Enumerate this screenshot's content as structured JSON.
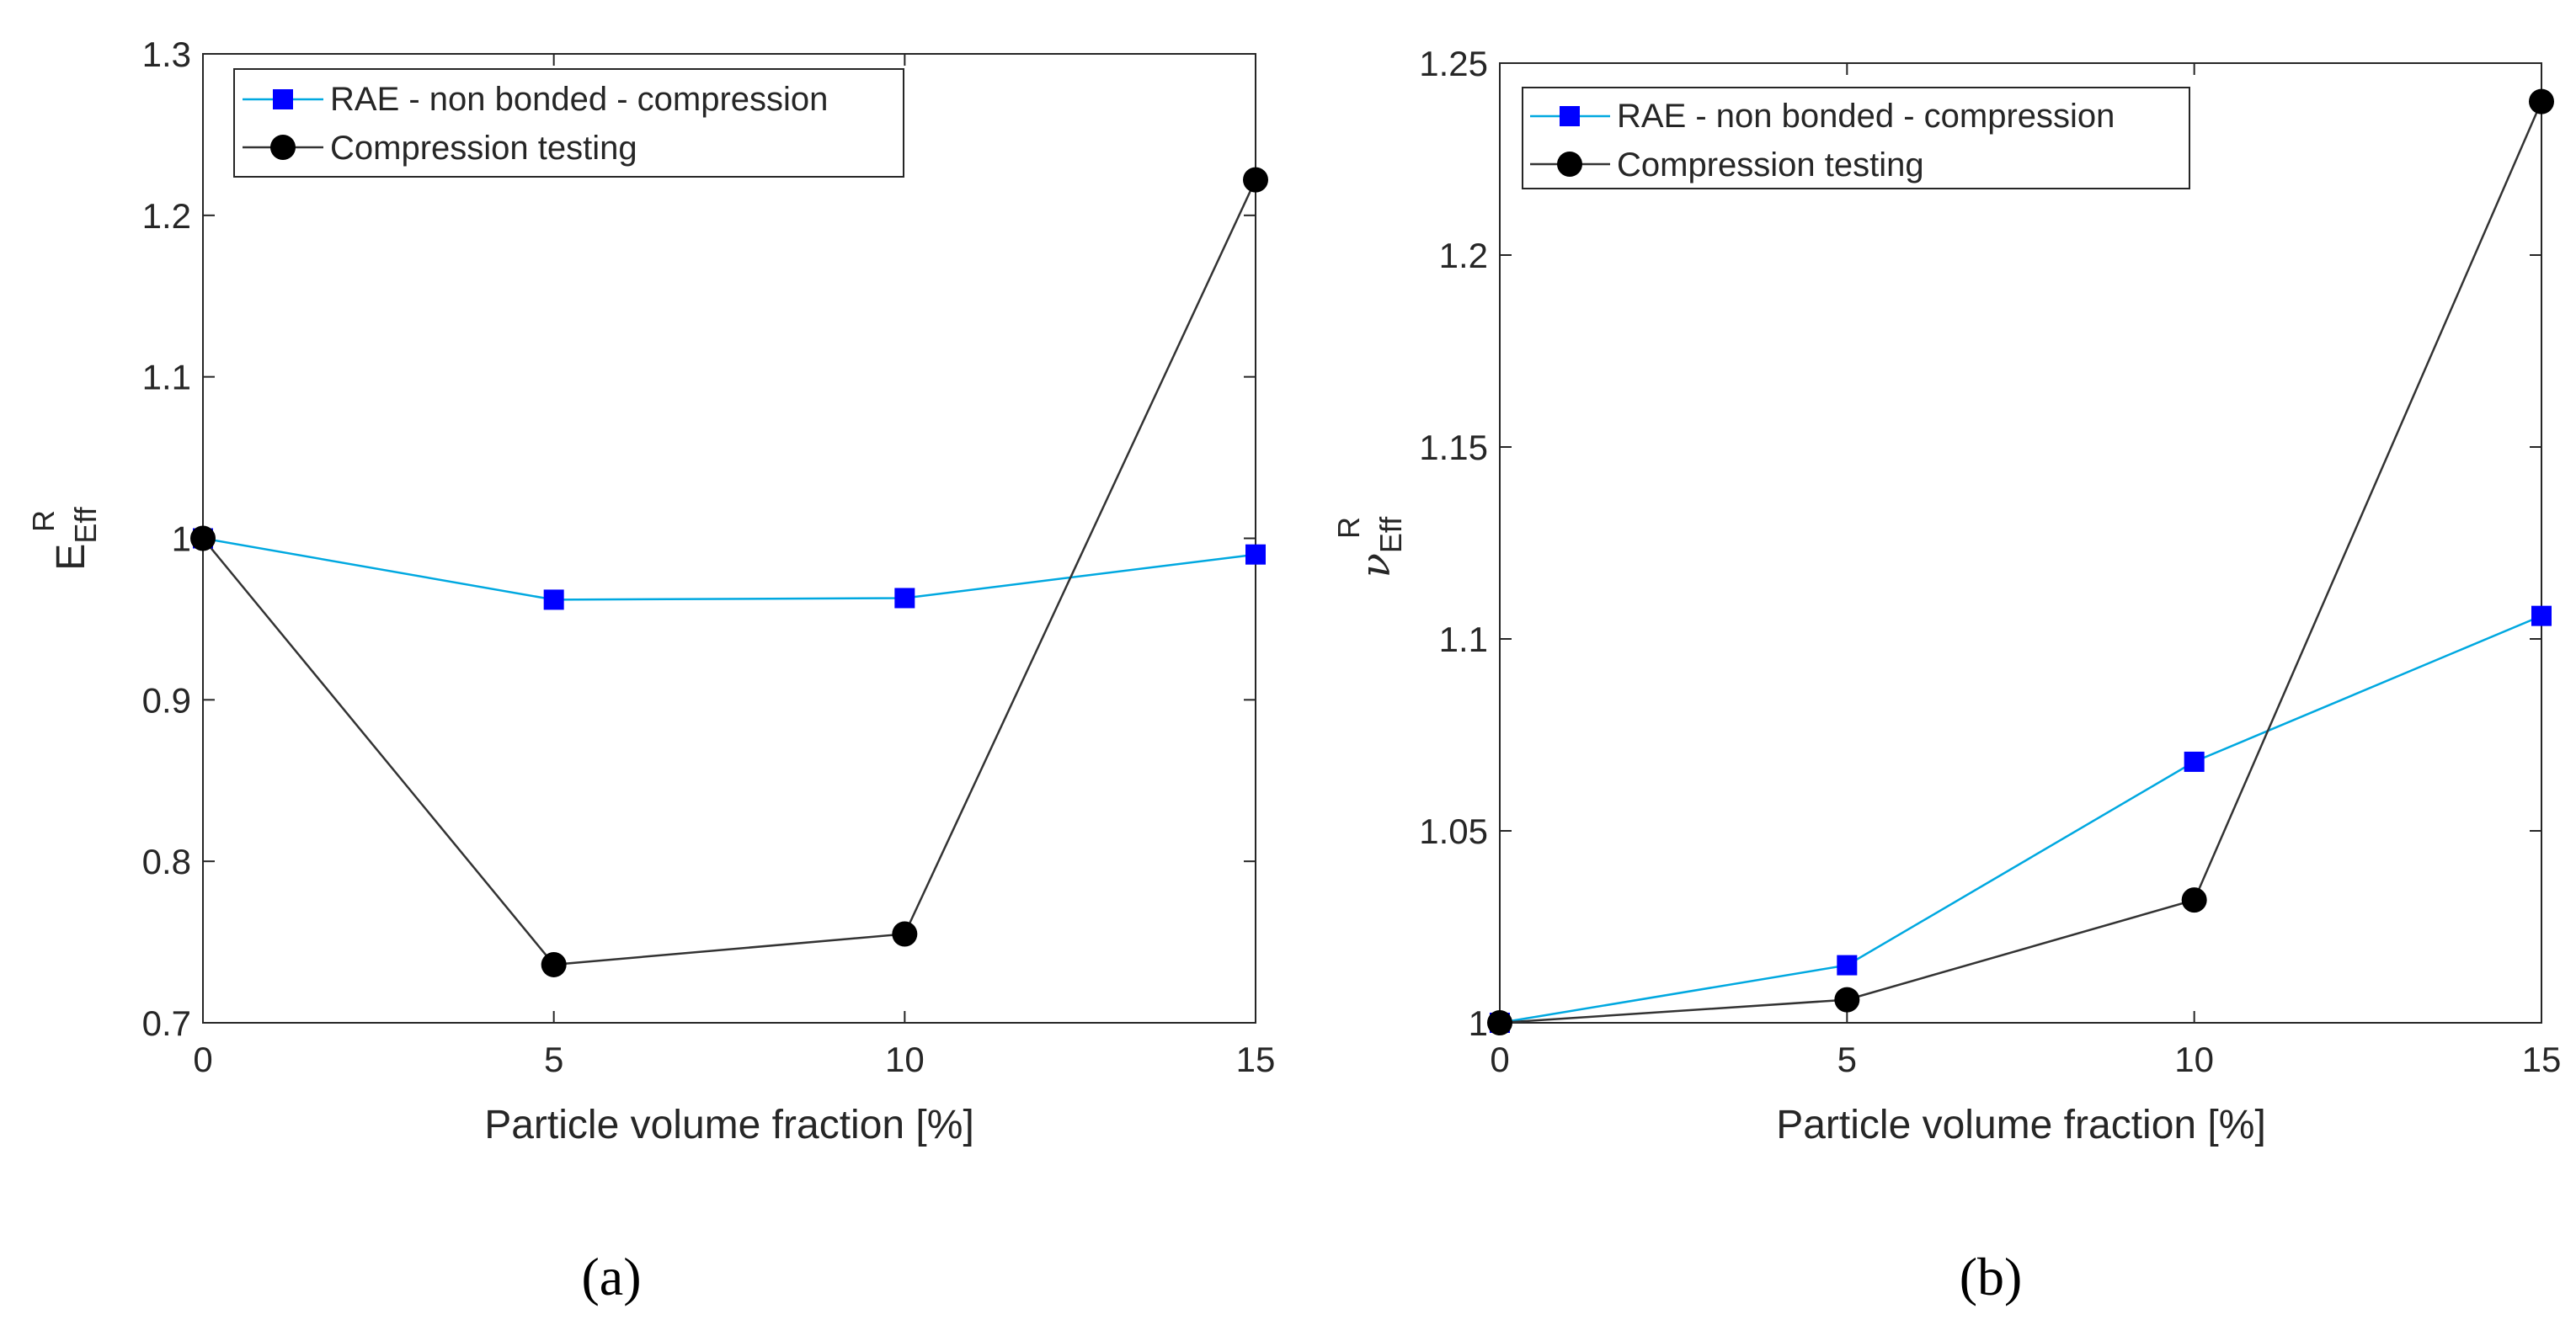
{
  "figure": {
    "panel_labels": [
      "(a)",
      "(b)"
    ]
  },
  "legend": {
    "series_names": [
      "RAE - non bonded - compression",
      "Compression testing"
    ]
  },
  "colors": {
    "rae_line": "#00a8e0",
    "rae_marker": "#0000ff",
    "testing": "#000000",
    "testing_line": "#333333",
    "axes": "#262626"
  },
  "chart_data": [
    {
      "type": "line",
      "panel": "(a)",
      "xlabel": "Particle volume fraction [%]",
      "ylabel": {
        "base": "E",
        "sup": "R",
        "sub": "Eff"
      },
      "x": [
        0,
        5,
        10,
        15
      ],
      "xlim": [
        0,
        15
      ],
      "ylim": [
        0.7,
        1.3
      ],
      "xticks": [
        0,
        5,
        10,
        15
      ],
      "yticks": [
        0.7,
        0.8,
        0.9,
        1.0,
        1.1,
        1.2,
        1.3
      ],
      "ytick_labels": [
        "0.7",
        "0.8",
        "0.9",
        "1",
        "1.1",
        "1.2",
        "1.3"
      ],
      "grid": false,
      "legend_position": "top-left",
      "series": [
        {
          "name": "RAE - non bonded - compression",
          "marker": "square",
          "values": [
            1.0,
            0.962,
            0.963,
            0.99
          ]
        },
        {
          "name": "Compression testing",
          "marker": "circle",
          "values": [
            1.0,
            0.736,
            0.755,
            1.222
          ]
        }
      ]
    },
    {
      "type": "line",
      "panel": "(b)",
      "xlabel": "Particle volume fraction [%]",
      "ylabel": {
        "base": "ν",
        "sup": "R",
        "sub": "Eff"
      },
      "x": [
        0,
        5,
        10,
        15
      ],
      "xlim": [
        0,
        15
      ],
      "ylim": [
        1.0,
        1.25
      ],
      "xticks": [
        0,
        5,
        10,
        15
      ],
      "yticks": [
        1.0,
        1.05,
        1.1,
        1.15,
        1.2,
        1.25
      ],
      "ytick_labels": [
        "1",
        "1.05",
        "1.1",
        "1.15",
        "1.2",
        "1.25"
      ],
      "grid": false,
      "legend_position": "top-left",
      "series": [
        {
          "name": "RAE - non bonded - compression",
          "marker": "square",
          "values": [
            1.0,
            1.015,
            1.068,
            1.106
          ]
        },
        {
          "name": "Compression testing",
          "marker": "circle",
          "values": [
            1.0,
            1.006,
            1.032,
            1.24
          ]
        }
      ]
    }
  ]
}
